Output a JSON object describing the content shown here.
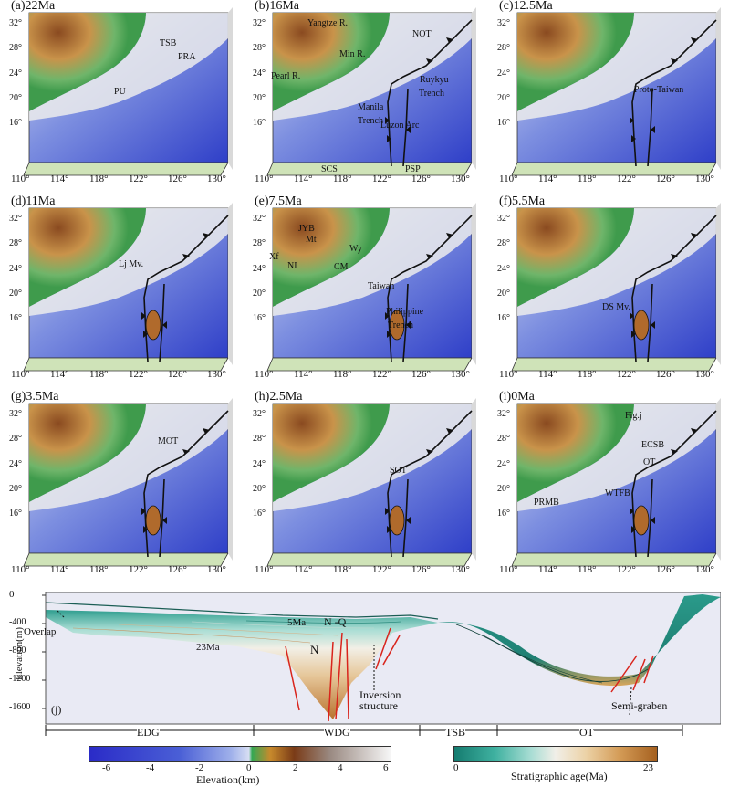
{
  "panels": [
    {
      "id": "a",
      "title": "(a)22Ma",
      "labels": [
        "TSB",
        "PRA",
        "PU"
      ]
    },
    {
      "id": "b",
      "title": "(b)16Ma",
      "labels": [
        "Yangtze R.",
        "Min R.",
        "Pearl R.",
        "NOT",
        "Ruykyu",
        "Trench",
        "Manila",
        "Trench",
        "Luzon Arc",
        "SCS",
        "PSP"
      ]
    },
    {
      "id": "c",
      "title": "(c)12.5Ma",
      "labels": [
        "Proto-Taiwan"
      ]
    },
    {
      "id": "d",
      "title": "(d)11Ma",
      "labels": [
        "Lj Mv."
      ]
    },
    {
      "id": "e",
      "title": "(e)7.5Ma",
      "labels": [
        "JYB",
        "Mt",
        "Xf",
        "Wy",
        "NI",
        "CM",
        "Taiwan",
        "Philippine",
        "Trench"
      ]
    },
    {
      "id": "f",
      "title": "(f)5.5Ma",
      "labels": [
        "DS Mv."
      ]
    },
    {
      "id": "g",
      "title": "(g)3.5Ma",
      "labels": [
        "MOT"
      ]
    },
    {
      "id": "h",
      "title": "(h)2.5Ma",
      "labels": [
        "SOT"
      ]
    },
    {
      "id": "i",
      "title": "(i)0Ma",
      "labels": [
        "Fig.j",
        "ECSB",
        "OT",
        "WTFB",
        "PRMB"
      ]
    }
  ],
  "lat_ticks": [
    "32°",
    "28°",
    "24°",
    "20°",
    "16°"
  ],
  "lon_ticks": [
    "110°",
    "114°",
    "118°",
    "122°",
    "126°",
    "130°"
  ],
  "section": {
    "panel_label": "(j)",
    "ylabel": "Elevation(m)",
    "yticks": [
      "0",
      "-400",
      "-800",
      "-1200",
      "-1600"
    ],
    "labels": {
      "overlap": "Overlap",
      "ma23": "23Ma",
      "ma5": "5Ma",
      "nq": "N -Q",
      "n": "N",
      "inversion1": "Inversion",
      "inversion2": "structure",
      "semigraben": "Semi-graben"
    },
    "zones": [
      "EDG",
      "WDG",
      "TSB",
      "OT"
    ]
  },
  "colorbar_elev": {
    "title": "Elevation(km)",
    "ticks": [
      "-6",
      "-4",
      "-2",
      "0",
      "2",
      "4",
      "6"
    ]
  },
  "colorbar_age": {
    "title": "Stratigraphic age(Ma)",
    "ticks": [
      "0",
      "23"
    ]
  }
}
